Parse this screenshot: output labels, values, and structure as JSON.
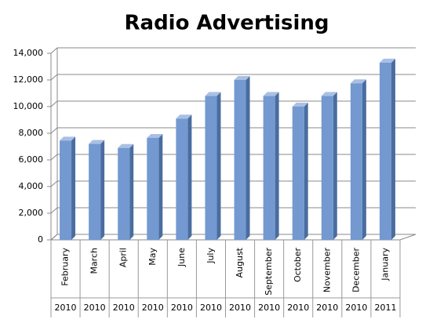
{
  "chart_data": {
    "type": "bar3d",
    "title": "Radio Advertising",
    "categories": [
      "February",
      "March",
      "April",
      "May",
      "June",
      "July",
      "August",
      "September",
      "October",
      "November",
      "December",
      "January"
    ],
    "category_groups": [
      "2010",
      "2010",
      "2010",
      "2010",
      "2010",
      "2010",
      "2010",
      "2010",
      "2010",
      "2010",
      "2010",
      "2011"
    ],
    "values": [
      7450,
      7200,
      6900,
      7650,
      9100,
      10800,
      12000,
      10800,
      10000,
      10800,
      11750,
      13300
    ],
    "color": "#7399d0",
    "ylim": [
      0,
      14000
    ],
    "yticks": [
      {
        "value": 0,
        "label": "0"
      },
      {
        "value": 2000,
        "label": "2,000"
      },
      {
        "value": 4000,
        "label": "4,000"
      },
      {
        "value": 6000,
        "label": "6,000"
      },
      {
        "value": 8000,
        "label": "8,000"
      },
      {
        "value": 10000,
        "label": "10,000"
      },
      {
        "value": 12000,
        "label": "12,000"
      },
      {
        "value": 14000,
        "label": "14,000"
      }
    ],
    "grid": true
  }
}
